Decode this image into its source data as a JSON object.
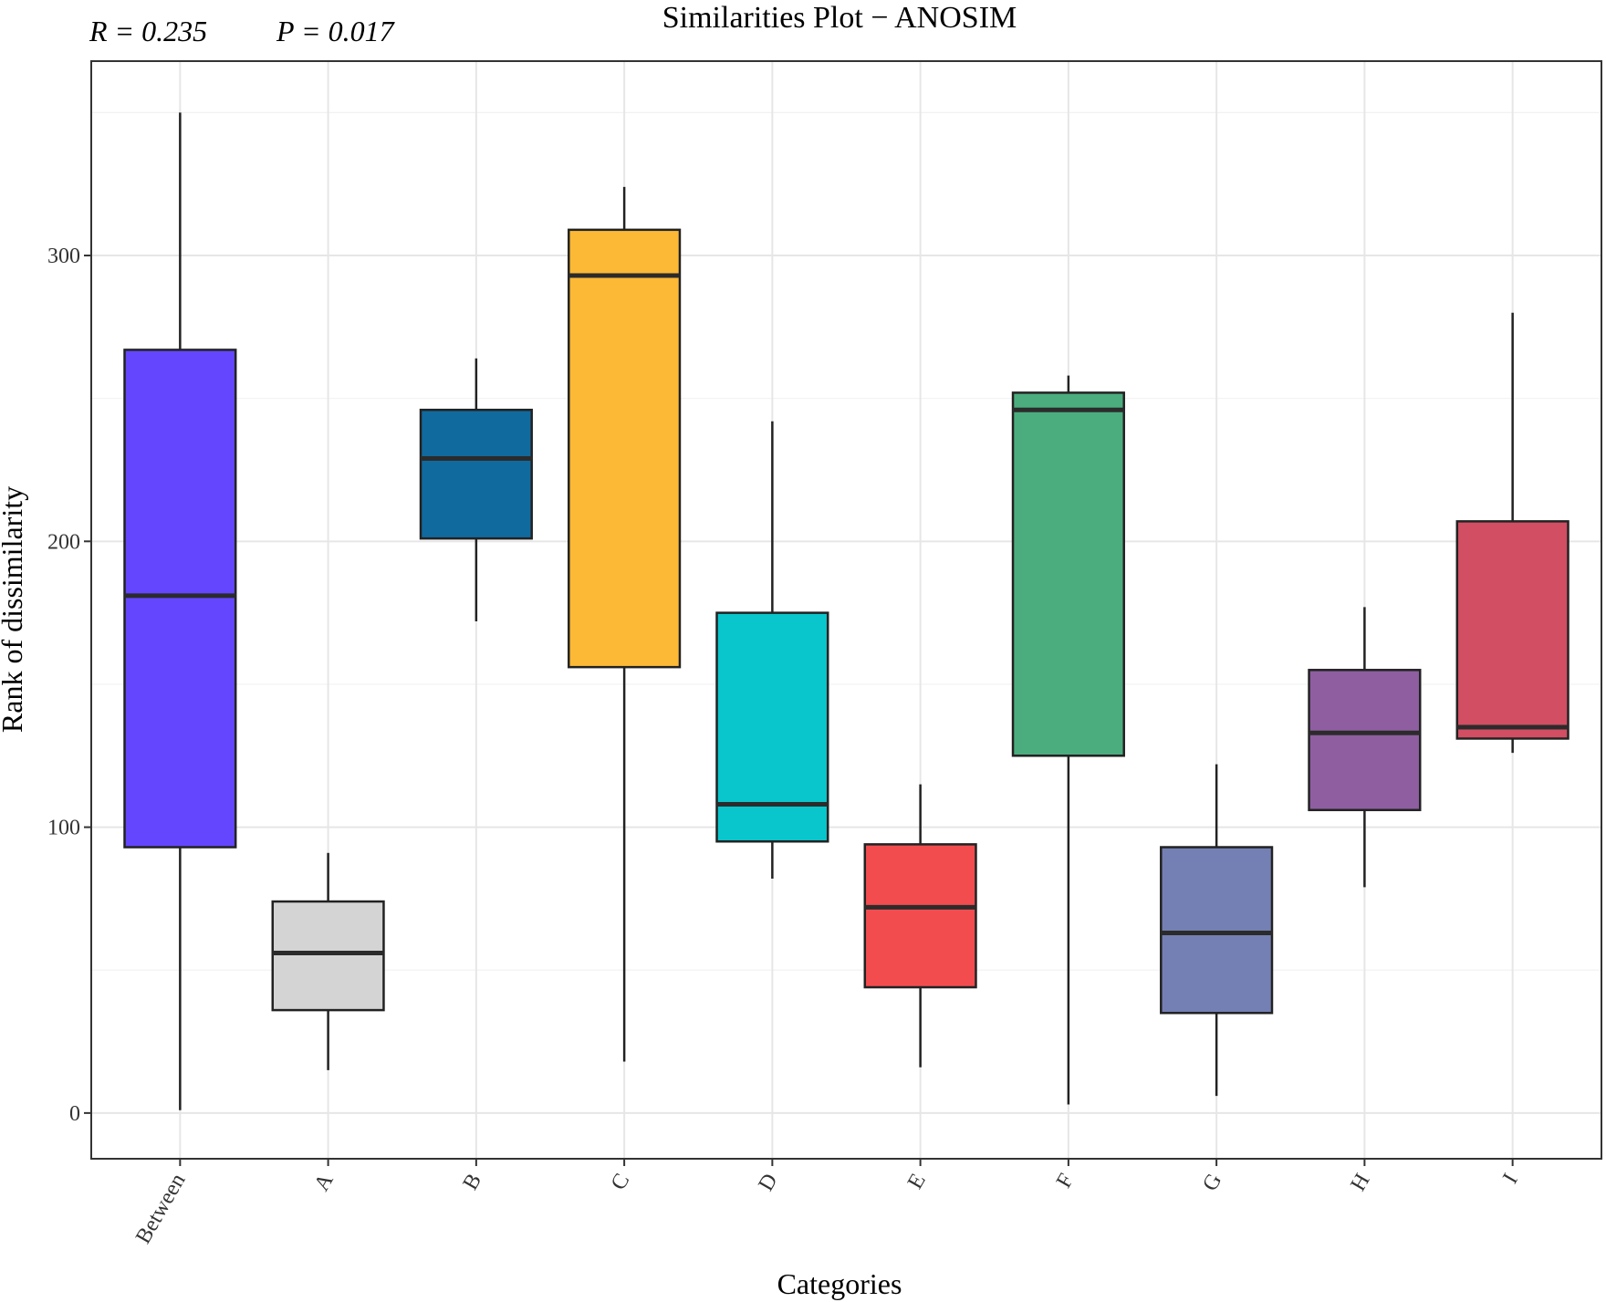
{
  "stats": {
    "r_text": "R =  0.235",
    "p_text": "P =  0.017"
  },
  "chart_data": {
    "type": "boxplot",
    "title": "Similarities Plot − ANOSIM",
    "xlabel": "Categories",
    "ylabel": "Rank of dissimilarity",
    "ylim": [
      -16,
      368
    ],
    "yticks": [
      0,
      100,
      200,
      300
    ],
    "grid": true,
    "categories": [
      "Between",
      "A",
      "B",
      "C",
      "D",
      "E",
      "F",
      "G",
      "H",
      "I"
    ],
    "series": [
      {
        "name": "Between",
        "color": "#6546ff",
        "min": 1,
        "q1": 93,
        "median": 181,
        "q3": 267,
        "max": 350
      },
      {
        "name": "A",
        "color": "#d4d4d4",
        "min": 15,
        "q1": 36,
        "median": 56,
        "q3": 74,
        "max": 91
      },
      {
        "name": "B",
        "color": "#106a9e",
        "min": 172,
        "q1": 201,
        "median": 229,
        "q3": 246,
        "max": 264
      },
      {
        "name": "C",
        "color": "#fcb935",
        "min": 18,
        "q1": 156,
        "median": 293,
        "q3": 309,
        "max": 324
      },
      {
        "name": "D",
        "color": "#08c6cb",
        "min": 82,
        "q1": 95,
        "median": 108,
        "q3": 175,
        "max": 242
      },
      {
        "name": "E",
        "color": "#f24c4f",
        "min": 16,
        "q1": 44,
        "median": 72,
        "q3": 94,
        "max": 115
      },
      {
        "name": "F",
        "color": "#4bad7e",
        "min": 3,
        "q1": 125,
        "median": 246,
        "q3": 252,
        "max": 258
      },
      {
        "name": "G",
        "color": "#7480b4",
        "min": 6,
        "q1": 35,
        "median": 63,
        "q3": 93,
        "max": 122
      },
      {
        "name": "H",
        "color": "#8e5ea1",
        "min": 79,
        "q1": 106,
        "median": 133,
        "q3": 155,
        "max": 177
      },
      {
        "name": "I",
        "color": "#d24e63",
        "min": 126,
        "q1": 131,
        "median": 135,
        "q3": 207,
        "max": 280
      }
    ]
  }
}
